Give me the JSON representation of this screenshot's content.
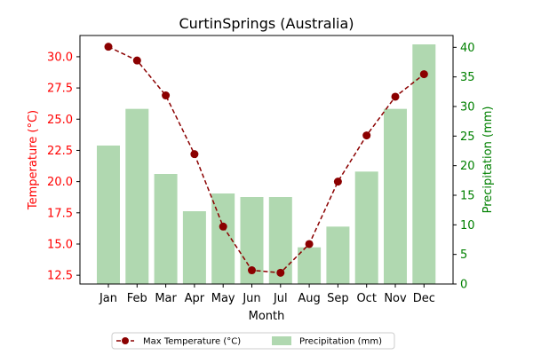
{
  "chart_data": {
    "type": "bar",
    "title": "CurtinSprings (Australia)",
    "xlabel": "Month",
    "categories": [
      "Jan",
      "Feb",
      "Mar",
      "Apr",
      "May",
      "Jun",
      "Jul",
      "Aug",
      "Sep",
      "Oct",
      "Nov",
      "Dec"
    ],
    "y_left": {
      "label": "Temperature (°C)",
      "range": [
        11.8,
        31.7
      ],
      "ticks": [
        "12.5",
        "15.0",
        "17.5",
        "20.0",
        "22.5",
        "25.0",
        "27.5",
        "30.0"
      ],
      "color": "#ff0000"
    },
    "y_right": {
      "label": "Precipitation (mm)",
      "range": [
        0,
        42
      ],
      "ticks": [
        "0",
        "5",
        "10",
        "15",
        "20",
        "25",
        "30",
        "35",
        "40"
      ],
      "color": "#008000"
    },
    "series": [
      {
        "name": "Max Temperature (°C)",
        "kind": "line",
        "axis": "left",
        "color": "#8b0000",
        "line_style": "dashed",
        "marker": "circle",
        "values": [
          30.8,
          29.7,
          26.9,
          22.2,
          16.4,
          12.9,
          12.7,
          15.0,
          20.0,
          23.7,
          26.8,
          28.6
        ]
      },
      {
        "name": "Precipitation (mm)",
        "kind": "bar",
        "axis": "right",
        "color": "#b0d8b0",
        "values": [
          23.4,
          29.6,
          18.6,
          12.3,
          15.3,
          14.7,
          14.7,
          6.2,
          9.7,
          19.0,
          29.6,
          40.5
        ]
      }
    ],
    "grid": false,
    "legend_placement": "bottom-center"
  }
}
